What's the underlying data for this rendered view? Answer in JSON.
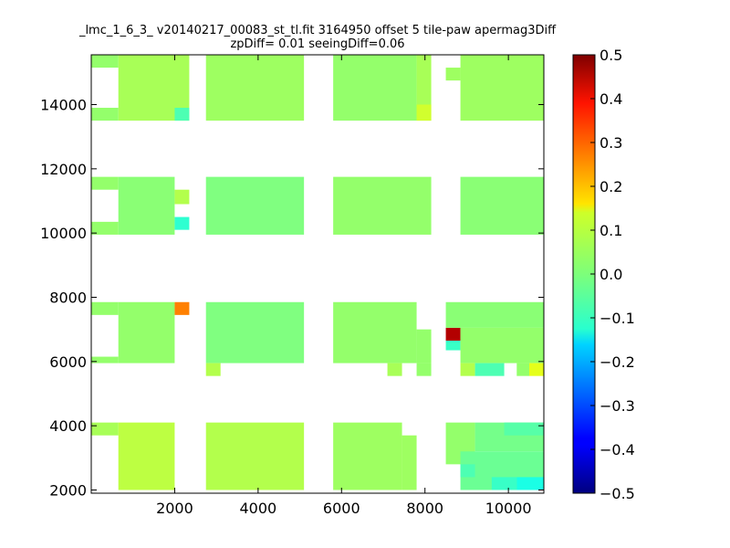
{
  "chart_data": {
    "type": "heatmap",
    "title_line1": "_lmc_1_6_3_ v20140217_00083_st_tl.fit 3164950 offset 5 tile-paw apermag3Diff",
    "title_line2": "zpDiff= 0.01 seeingDiff=0.06",
    "xlabel": "",
    "ylabel": "",
    "xlim": [
      0,
      10850
    ],
    "ylim": [
      1900,
      15550
    ],
    "xticks": [
      2000,
      4000,
      6000,
      8000,
      10000
    ],
    "yticks": [
      2000,
      4000,
      6000,
      8000,
      10000,
      12000,
      14000
    ],
    "colorbar": {
      "colormap": "jet",
      "vmin": -0.5,
      "vmax": 0.5,
      "ticks": [
        0.5,
        0.4,
        0.3,
        0.2,
        0.1,
        0.0,
        -0.1,
        -0.2,
        -0.3,
        -0.4,
        -0.5
      ],
      "tick_labels": [
        "0.5",
        "0.4",
        "0.3",
        "0.2",
        "0.1",
        "0.0",
        "−0.1",
        "−0.2",
        "−0.3",
        "−0.4",
        "−0.5"
      ]
    },
    "cells": [
      {
        "x0": 0,
        "x1": 650,
        "y0": 15150,
        "y1": 15550,
        "v": 0.02
      },
      {
        "x0": 650,
        "x1": 2350,
        "y0": 13500,
        "y1": 15550,
        "v": 0.04
      },
      {
        "x0": 0,
        "x1": 650,
        "y0": 13500,
        "y1": 13900,
        "v": 0.02
      },
      {
        "x0": 2000,
        "x1": 2350,
        "y0": 13500,
        "y1": 13900,
        "v": -0.05
      },
      {
        "x0": 2750,
        "x1": 5100,
        "y0": 13500,
        "y1": 15550,
        "v": 0.03
      },
      {
        "x0": 5800,
        "x1": 7800,
        "y0": 13500,
        "y1": 15550,
        "v": 0.02
      },
      {
        "x0": 7800,
        "x1": 8150,
        "y0": 13500,
        "y1": 15550,
        "v": 0.04
      },
      {
        "x0": 7800,
        "x1": 8150,
        "y0": 13500,
        "y1": 14000,
        "v": 0.08
      },
      {
        "x0": 8500,
        "x1": 8850,
        "y0": 14750,
        "y1": 15150,
        "v": 0.03
      },
      {
        "x0": 8850,
        "x1": 10850,
        "y0": 13500,
        "y1": 15550,
        "v": 0.03
      },
      {
        "x0": 0,
        "x1": 650,
        "y0": 11350,
        "y1": 11750,
        "v": 0.02
      },
      {
        "x0": 650,
        "x1": 2000,
        "y0": 9950,
        "y1": 11750,
        "v": 0.01
      },
      {
        "x0": 0,
        "x1": 650,
        "y0": 9950,
        "y1": 10350,
        "v": 0.02
      },
      {
        "x0": 2000,
        "x1": 2350,
        "y0": 10900,
        "y1": 11350,
        "v": 0.05
      },
      {
        "x0": 2000,
        "x1": 2350,
        "y0": 10100,
        "y1": 10500,
        "v": -0.08
      },
      {
        "x0": 2750,
        "x1": 5100,
        "y0": 9950,
        "y1": 11750,
        "v": 0.0
      },
      {
        "x0": 5800,
        "x1": 8150,
        "y0": 9950,
        "y1": 11750,
        "v": 0.02
      },
      {
        "x0": 8850,
        "x1": 10850,
        "y0": 9950,
        "y1": 11750,
        "v": 0.01
      },
      {
        "x0": 0,
        "x1": 650,
        "y0": 7450,
        "y1": 7850,
        "v": 0.02
      },
      {
        "x0": 650,
        "x1": 2000,
        "y0": 5950,
        "y1": 7850,
        "v": 0.02
      },
      {
        "x0": 0,
        "x1": 650,
        "y0": 5950,
        "y1": 6150,
        "v": 0.02
      },
      {
        "x0": 2000,
        "x1": 2350,
        "y0": 7450,
        "y1": 7850,
        "v": 0.25
      },
      {
        "x0": 2750,
        "x1": 5100,
        "y0": 5950,
        "y1": 7850,
        "v": 0.0
      },
      {
        "x0": 2750,
        "x1": 3100,
        "y0": 5550,
        "y1": 5950,
        "v": 0.05
      },
      {
        "x0": 5800,
        "x1": 7800,
        "y0": 5950,
        "y1": 7850,
        "v": 0.02
      },
      {
        "x0": 7800,
        "x1": 8150,
        "y0": 5950,
        "y1": 7000,
        "v": 0.02
      },
      {
        "x0": 7100,
        "x1": 7450,
        "y0": 5550,
        "y1": 5950,
        "v": 0.04
      },
      {
        "x0": 7800,
        "x1": 8150,
        "y0": 5550,
        "y1": 5950,
        "v": 0.02
      },
      {
        "x0": 8500,
        "x1": 8850,
        "y0": 6650,
        "y1": 7050,
        "v": 0.45
      },
      {
        "x0": 8500,
        "x1": 8850,
        "y0": 6350,
        "y1": 6650,
        "v": -0.07
      },
      {
        "x0": 8500,
        "x1": 10850,
        "y0": 7050,
        "y1": 7850,
        "v": 0.01
      },
      {
        "x0": 8850,
        "x1": 10850,
        "y0": 5950,
        "y1": 7050,
        "v": 0.02
      },
      {
        "x0": 8850,
        "x1": 9200,
        "y0": 5550,
        "y1": 5950,
        "v": 0.05
      },
      {
        "x0": 9200,
        "x1": 9900,
        "y0": 5550,
        "y1": 5950,
        "v": -0.05
      },
      {
        "x0": 10200,
        "x1": 10500,
        "y0": 5550,
        "y1": 5950,
        "v": 0.02
      },
      {
        "x0": 10500,
        "x1": 10850,
        "y0": 5550,
        "y1": 5950,
        "v": 0.1
      },
      {
        "x0": 0,
        "x1": 650,
        "y0": 3700,
        "y1": 4100,
        "v": 0.04
      },
      {
        "x0": 650,
        "x1": 2000,
        "y0": 2000,
        "y1": 4100,
        "v": 0.06
      },
      {
        "x0": 2750,
        "x1": 5100,
        "y0": 2000,
        "y1": 4100,
        "v": 0.05
      },
      {
        "x0": 5800,
        "x1": 7450,
        "y0": 2000,
        "y1": 4100,
        "v": 0.03
      },
      {
        "x0": 7450,
        "x1": 7800,
        "y0": 2000,
        "y1": 3700,
        "v": 0.03
      },
      {
        "x0": 8500,
        "x1": 9200,
        "y0": 2800,
        "y1": 4100,
        "v": 0.02
      },
      {
        "x0": 9200,
        "x1": 10850,
        "y0": 3200,
        "y1": 4100,
        "v": -0.01
      },
      {
        "x0": 9900,
        "x1": 10850,
        "y0": 3700,
        "y1": 4100,
        "v": -0.04
      },
      {
        "x0": 8850,
        "x1": 10850,
        "y0": 2000,
        "y1": 3200,
        "v": -0.02
      },
      {
        "x0": 8850,
        "x1": 9200,
        "y0": 2400,
        "y1": 2800,
        "v": -0.05
      },
      {
        "x0": 9600,
        "x1": 10200,
        "y0": 2000,
        "y1": 2400,
        "v": -0.07
      },
      {
        "x0": 10200,
        "x1": 10850,
        "y0": 2000,
        "y1": 2400,
        "v": -0.1
      }
    ]
  }
}
